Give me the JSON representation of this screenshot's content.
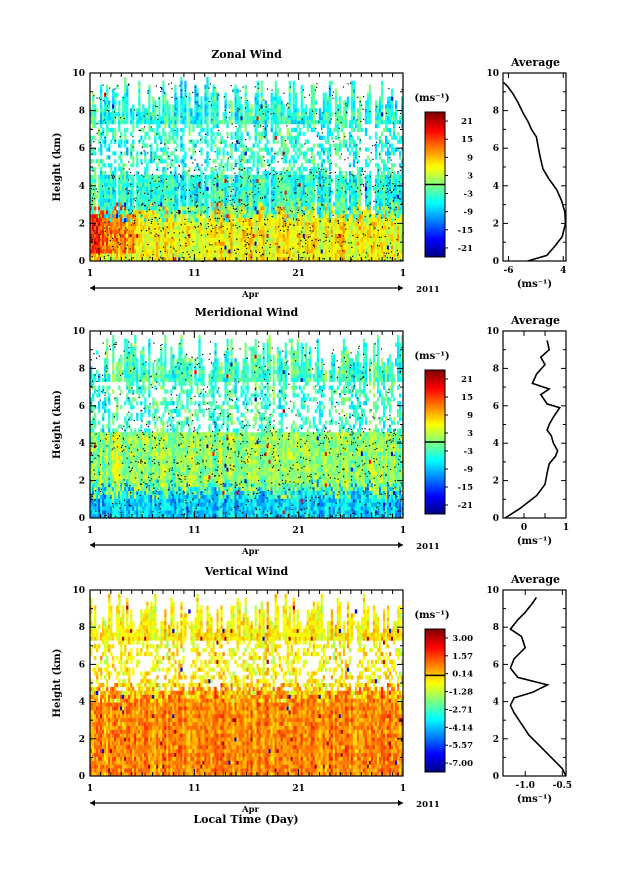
{
  "figure": {
    "x_label": "Local Time (Day)",
    "month_label": "Apr",
    "year_label": "2011",
    "x_ticks": [
      "1",
      "11",
      "21",
      "1"
    ],
    "y_label": "Height (km)",
    "unit_label": "(ms⁻¹)",
    "avg_title": "Average"
  },
  "chart_data": [
    {
      "type": "heatmap",
      "title": "Zonal Wind",
      "ylabel": "Height (km)",
      "xlabel": "Apr",
      "ylim": [
        0,
        10
      ],
      "y_ticks": [
        0,
        2,
        4,
        6,
        8,
        10
      ],
      "x_range_days": [
        1,
        31
      ],
      "colorbar": {
        "label": "(ms⁻¹)",
        "ticks": [
          "21",
          "15",
          "9",
          "3",
          "-3",
          "-9",
          "-15",
          "-21"
        ],
        "range": [
          -24,
          24
        ]
      },
      "pattern": {
        "low_band_top_km": 2.6,
        "low_band_value": 6,
        "early_low_value": 15,
        "upper_value": -4
      }
    },
    {
      "type": "heatmap",
      "title": "Meridional Wind",
      "ylabel": "Height (km)",
      "xlabel": "Apr",
      "ylim": [
        0,
        10
      ],
      "y_ticks": [
        0,
        2,
        4,
        6,
        8,
        10
      ],
      "x_range_days": [
        1,
        31
      ],
      "colorbar": {
        "label": "(ms⁻¹)",
        "ticks": [
          "21",
          "15",
          "9",
          "3",
          "-3",
          "-9",
          "-15",
          "-21"
        ],
        "range": [
          -24,
          24
        ]
      },
      "pattern": {
        "low_band_top_km": 1.5,
        "low_band_value": -8,
        "mid_value": 1,
        "upper_value": -3
      }
    },
    {
      "type": "heatmap",
      "title": "Vertical Wind",
      "ylabel": "Height (km)",
      "xlabel": "Apr",
      "ylim": [
        0,
        10
      ],
      "y_ticks": [
        0,
        2,
        4,
        6,
        8,
        10
      ],
      "x_range_days": [
        1,
        31
      ],
      "colorbar": {
        "label": "(ms⁻¹)",
        "ticks": [
          "3.00",
          "1.57",
          "0.14",
          "-1.28",
          "-2.71",
          "-4.14",
          "-5.57",
          "-7.00"
        ],
        "range": [
          -7.7,
          3.7
        ]
      },
      "pattern": {
        "low_band_top_km": 4.5,
        "low_band_value": 0.8,
        "upper_value": -0.4
      }
    }
  ],
  "profiles": [
    {
      "type": "line",
      "title": "Average",
      "xlabel": "(ms⁻¹)",
      "xlim": [
        -7,
        4.5
      ],
      "x_ticks": [
        -6,
        4
      ],
      "x_tick_labels": [
        "-6",
        "4"
      ],
      "ylim": [
        0,
        10
      ],
      "y_ticks": [
        0,
        2,
        4,
        6,
        8,
        10
      ],
      "points": [
        [
          -2.5,
          0
        ],
        [
          1,
          0.3
        ],
        [
          2.5,
          0.8
        ],
        [
          3.8,
          1.3
        ],
        [
          4.4,
          2
        ],
        [
          4.3,
          2.6
        ],
        [
          3.7,
          3.2
        ],
        [
          2.8,
          3.8
        ],
        [
          1.3,
          4.4
        ],
        [
          0.3,
          4.9
        ],
        [
          -0.2,
          5.5
        ],
        [
          -0.6,
          6.1
        ],
        [
          -0.9,
          6.6
        ],
        [
          -1.8,
          7
        ],
        [
          -2.4,
          7.4
        ],
        [
          -3.2,
          7.8
        ],
        [
          -4.2,
          8.4
        ],
        [
          -5.2,
          8.9
        ],
        [
          -6.2,
          9.3
        ],
        [
          -6.9,
          9.5
        ]
      ]
    },
    {
      "type": "line",
      "title": "Average",
      "xlabel": "(ms⁻¹)",
      "xlim": [
        -0.5,
        1
      ],
      "x_ticks": [
        0,
        0.5,
        1
      ],
      "x_tick_labels": [
        "0",
        "",
        "1"
      ],
      "ylim": [
        0,
        10
      ],
      "y_ticks": [
        0,
        2,
        4,
        6,
        8,
        10
      ],
      "points": [
        [
          -0.45,
          0
        ],
        [
          -0.1,
          0.5
        ],
        [
          0.3,
          1.2
        ],
        [
          0.5,
          1.8
        ],
        [
          0.55,
          2.4
        ],
        [
          0.6,
          2.9
        ],
        [
          0.75,
          3.3
        ],
        [
          0.8,
          3.6
        ],
        [
          0.7,
          4
        ],
        [
          0.65,
          4.4
        ],
        [
          0.55,
          4.7
        ],
        [
          0.6,
          5
        ],
        [
          0.7,
          5.4
        ],
        [
          0.85,
          5.9
        ],
        [
          0.55,
          6.1
        ],
        [
          0.4,
          6.6
        ],
        [
          0.6,
          6.9
        ],
        [
          0.2,
          7.2
        ],
        [
          0.3,
          7.7
        ],
        [
          0.5,
          8.2
        ],
        [
          0.4,
          8.6
        ],
        [
          0.6,
          9
        ],
        [
          0.55,
          9.5
        ]
      ]
    },
    {
      "type": "line",
      "title": "Average",
      "xlabel": "(ms⁻¹)",
      "xlim": [
        -1.3,
        -0.45
      ],
      "x_ticks": [
        -1.0,
        -0.5
      ],
      "x_tick_labels": [
        "-1.0",
        "-0.5"
      ],
      "ylim": [
        0,
        10
      ],
      "y_ticks": [
        0,
        2,
        4,
        6,
        8,
        10
      ],
      "points": [
        [
          -0.45,
          0
        ],
        [
          -0.5,
          0.4
        ],
        [
          -0.65,
          1
        ],
        [
          -0.8,
          1.6
        ],
        [
          -0.95,
          2.2
        ],
        [
          -1.05,
          2.8
        ],
        [
          -1.15,
          3.4
        ],
        [
          -1.2,
          3.8
        ],
        [
          -1.15,
          4.2
        ],
        [
          -0.9,
          4.5
        ],
        [
          -0.7,
          4.9
        ],
        [
          -1.1,
          5.3
        ],
        [
          -1.2,
          5.8
        ],
        [
          -1.15,
          6.3
        ],
        [
          -1.0,
          6.9
        ],
        [
          -1.05,
          7.5
        ],
        [
          -1.2,
          7.9
        ],
        [
          -1.1,
          8.4
        ],
        [
          -1.0,
          8.8
        ],
        [
          -0.9,
          9.3
        ],
        [
          -0.85,
          9.6
        ]
      ]
    }
  ]
}
